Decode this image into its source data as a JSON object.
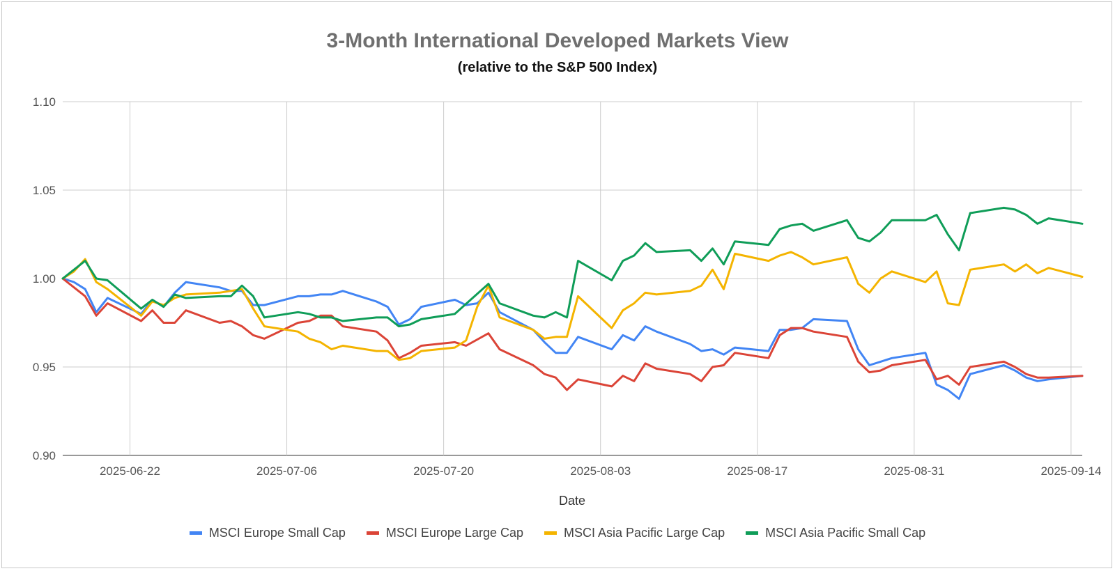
{
  "chart_data": {
    "type": "line",
    "title": "3-Month International Developed Markets View",
    "subtitle": "(relative to the S&P 500 Index)",
    "xlabel": "Date",
    "ylabel": "",
    "ylim": [
      0.9,
      1.1
    ],
    "yticks": [
      "0.90",
      "0.95",
      "1.00",
      "1.05",
      "1.10"
    ],
    "xticks": [
      "2025-06-22",
      "2025-07-06",
      "2025-07-20",
      "2025-08-03",
      "2025-08-17",
      "2025-08-31",
      "2025-09-14"
    ],
    "xrange": [
      "2025-06-16",
      "2025-09-15"
    ],
    "grid": true,
    "legend_position": "bottom",
    "series": [
      {
        "name": "MSCI Europe Small Cap",
        "color": "#4285f4",
        "points": [
          [
            "2025-06-16",
            1.0
          ],
          [
            "2025-06-17",
            0.998
          ],
          [
            "2025-06-18",
            0.994
          ],
          [
            "2025-06-19",
            0.981
          ],
          [
            "2025-06-20",
            0.989
          ],
          [
            "2025-06-23",
            0.98
          ],
          [
            "2025-06-24",
            0.988
          ],
          [
            "2025-06-25",
            0.984
          ],
          [
            "2025-06-26",
            0.992
          ],
          [
            "2025-06-27",
            0.998
          ],
          [
            "2025-06-30",
            0.995
          ],
          [
            "2025-07-01",
            0.993
          ],
          [
            "2025-07-02",
            0.993
          ],
          [
            "2025-07-03",
            0.985
          ],
          [
            "2025-07-04",
            0.985
          ],
          [
            "2025-07-07",
            0.99
          ],
          [
            "2025-07-08",
            0.99
          ],
          [
            "2025-07-09",
            0.991
          ],
          [
            "2025-07-10",
            0.991
          ],
          [
            "2025-07-11",
            0.993
          ],
          [
            "2025-07-14",
            0.987
          ],
          [
            "2025-07-15",
            0.984
          ],
          [
            "2025-07-16",
            0.974
          ],
          [
            "2025-07-17",
            0.977
          ],
          [
            "2025-07-18",
            0.984
          ],
          [
            "2025-07-21",
            0.988
          ],
          [
            "2025-07-22",
            0.985
          ],
          [
            "2025-07-23",
            0.986
          ],
          [
            "2025-07-24",
            0.992
          ],
          [
            "2025-07-25",
            0.981
          ],
          [
            "2025-07-28",
            0.971
          ],
          [
            "2025-07-29",
            0.964
          ],
          [
            "2025-07-30",
            0.958
          ],
          [
            "2025-07-31",
            0.958
          ],
          [
            "2025-08-01",
            0.967
          ],
          [
            "2025-08-04",
            0.96
          ],
          [
            "2025-08-05",
            0.968
          ],
          [
            "2025-08-06",
            0.965
          ],
          [
            "2025-08-07",
            0.973
          ],
          [
            "2025-08-08",
            0.97
          ],
          [
            "2025-08-11",
            0.963
          ],
          [
            "2025-08-12",
            0.959
          ],
          [
            "2025-08-13",
            0.96
          ],
          [
            "2025-08-14",
            0.957
          ],
          [
            "2025-08-15",
            0.961
          ],
          [
            "2025-08-18",
            0.959
          ],
          [
            "2025-08-19",
            0.971
          ],
          [
            "2025-08-20",
            0.971
          ],
          [
            "2025-08-21",
            0.972
          ],
          [
            "2025-08-22",
            0.977
          ],
          [
            "2025-08-25",
            0.976
          ],
          [
            "2025-08-26",
            0.96
          ],
          [
            "2025-08-27",
            0.951
          ],
          [
            "2025-08-28",
            0.953
          ],
          [
            "2025-08-29",
            0.955
          ],
          [
            "2025-09-01",
            0.958
          ],
          [
            "2025-09-02",
            0.94
          ],
          [
            "2025-09-03",
            0.937
          ],
          [
            "2025-09-04",
            0.932
          ],
          [
            "2025-09-05",
            0.946
          ],
          [
            "2025-09-08",
            0.951
          ],
          [
            "2025-09-09",
            0.948
          ],
          [
            "2025-09-10",
            0.944
          ],
          [
            "2025-09-11",
            0.942
          ],
          [
            "2025-09-12",
            0.943
          ],
          [
            "2025-09-15",
            0.945
          ]
        ]
      },
      {
        "name": "MSCI Europe Large Cap",
        "color": "#db4437",
        "points": [
          [
            "2025-06-16",
            1.0
          ],
          [
            "2025-06-17",
            0.995
          ],
          [
            "2025-06-18",
            0.99
          ],
          [
            "2025-06-19",
            0.979
          ],
          [
            "2025-06-20",
            0.986
          ],
          [
            "2025-06-23",
            0.976
          ],
          [
            "2025-06-24",
            0.982
          ],
          [
            "2025-06-25",
            0.975
          ],
          [
            "2025-06-26",
            0.975
          ],
          [
            "2025-06-27",
            0.982
          ],
          [
            "2025-06-30",
            0.975
          ],
          [
            "2025-07-01",
            0.976
          ],
          [
            "2025-07-02",
            0.973
          ],
          [
            "2025-07-03",
            0.968
          ],
          [
            "2025-07-04",
            0.966
          ],
          [
            "2025-07-07",
            0.975
          ],
          [
            "2025-07-08",
            0.976
          ],
          [
            "2025-07-09",
            0.979
          ],
          [
            "2025-07-10",
            0.979
          ],
          [
            "2025-07-11",
            0.973
          ],
          [
            "2025-07-14",
            0.97
          ],
          [
            "2025-07-15",
            0.965
          ],
          [
            "2025-07-16",
            0.955
          ],
          [
            "2025-07-17",
            0.958
          ],
          [
            "2025-07-18",
            0.962
          ],
          [
            "2025-07-21",
            0.964
          ],
          [
            "2025-07-22",
            0.962
          ],
          [
            "2025-07-24",
            0.969
          ],
          [
            "2025-07-25",
            0.96
          ],
          [
            "2025-07-28",
            0.951
          ],
          [
            "2025-07-29",
            0.946
          ],
          [
            "2025-07-30",
            0.944
          ],
          [
            "2025-07-31",
            0.937
          ],
          [
            "2025-08-01",
            0.943
          ],
          [
            "2025-08-04",
            0.939
          ],
          [
            "2025-08-05",
            0.945
          ],
          [
            "2025-08-06",
            0.942
          ],
          [
            "2025-08-07",
            0.952
          ],
          [
            "2025-08-08",
            0.949
          ],
          [
            "2025-08-11",
            0.946
          ],
          [
            "2025-08-12",
            0.942
          ],
          [
            "2025-08-13",
            0.95
          ],
          [
            "2025-08-14",
            0.951
          ],
          [
            "2025-08-15",
            0.958
          ],
          [
            "2025-08-18",
            0.955
          ],
          [
            "2025-08-19",
            0.968
          ],
          [
            "2025-08-20",
            0.972
          ],
          [
            "2025-08-21",
            0.972
          ],
          [
            "2025-08-22",
            0.97
          ],
          [
            "2025-08-25",
            0.967
          ],
          [
            "2025-08-26",
            0.953
          ],
          [
            "2025-08-27",
            0.947
          ],
          [
            "2025-08-28",
            0.948
          ],
          [
            "2025-08-29",
            0.951
          ],
          [
            "2025-09-01",
            0.954
          ],
          [
            "2025-09-02",
            0.943
          ],
          [
            "2025-09-03",
            0.945
          ],
          [
            "2025-09-04",
            0.94
          ],
          [
            "2025-09-05",
            0.95
          ],
          [
            "2025-09-08",
            0.953
          ],
          [
            "2025-09-09",
            0.95
          ],
          [
            "2025-09-10",
            0.946
          ],
          [
            "2025-09-11",
            0.944
          ],
          [
            "2025-09-12",
            0.944
          ],
          [
            "2025-09-15",
            0.945
          ]
        ]
      },
      {
        "name": "MSCI Asia Pacific Large Cap",
        "color": "#f4b400",
        "points": [
          [
            "2025-06-16",
            1.0
          ],
          [
            "2025-06-17",
            1.004
          ],
          [
            "2025-06-18",
            1.011
          ],
          [
            "2025-06-19",
            0.998
          ],
          [
            "2025-06-20",
            0.994
          ],
          [
            "2025-06-23",
            0.979
          ],
          [
            "2025-06-24",
            0.987
          ],
          [
            "2025-06-25",
            0.985
          ],
          [
            "2025-06-26",
            0.989
          ],
          [
            "2025-06-27",
            0.991
          ],
          [
            "2025-06-30",
            0.992
          ],
          [
            "2025-07-01",
            0.993
          ],
          [
            "2025-07-02",
            0.994
          ],
          [
            "2025-07-03",
            0.983
          ],
          [
            "2025-07-04",
            0.973
          ],
          [
            "2025-07-07",
            0.97
          ],
          [
            "2025-07-08",
            0.966
          ],
          [
            "2025-07-09",
            0.964
          ],
          [
            "2025-07-10",
            0.96
          ],
          [
            "2025-07-11",
            0.962
          ],
          [
            "2025-07-14",
            0.959
          ],
          [
            "2025-07-15",
            0.959
          ],
          [
            "2025-07-16",
            0.954
          ],
          [
            "2025-07-17",
            0.955
          ],
          [
            "2025-07-18",
            0.959
          ],
          [
            "2025-07-21",
            0.961
          ],
          [
            "2025-07-22",
            0.965
          ],
          [
            "2025-07-23",
            0.984
          ],
          [
            "2025-07-24",
            0.996
          ],
          [
            "2025-07-25",
            0.978
          ],
          [
            "2025-07-28",
            0.971
          ],
          [
            "2025-07-29",
            0.966
          ],
          [
            "2025-07-30",
            0.967
          ],
          [
            "2025-07-31",
            0.967
          ],
          [
            "2025-08-01",
            0.99
          ],
          [
            "2025-08-04",
            0.972
          ],
          [
            "2025-08-05",
            0.982
          ],
          [
            "2025-08-06",
            0.986
          ],
          [
            "2025-08-07",
            0.992
          ],
          [
            "2025-08-08",
            0.991
          ],
          [
            "2025-08-11",
            0.993
          ],
          [
            "2025-08-12",
            0.996
          ],
          [
            "2025-08-13",
            1.005
          ],
          [
            "2025-08-14",
            0.994
          ],
          [
            "2025-08-15",
            1.014
          ],
          [
            "2025-08-18",
            1.01
          ],
          [
            "2025-08-19",
            1.013
          ],
          [
            "2025-08-20",
            1.015
          ],
          [
            "2025-08-21",
            1.012
          ],
          [
            "2025-08-22",
            1.008
          ],
          [
            "2025-08-25",
            1.012
          ],
          [
            "2025-08-26",
            0.997
          ],
          [
            "2025-08-27",
            0.992
          ],
          [
            "2025-08-28",
            1.0
          ],
          [
            "2025-08-29",
            1.004
          ],
          [
            "2025-09-01",
            0.998
          ],
          [
            "2025-09-02",
            1.004
          ],
          [
            "2025-09-03",
            0.986
          ],
          [
            "2025-09-04",
            0.985
          ],
          [
            "2025-09-05",
            1.005
          ],
          [
            "2025-09-08",
            1.008
          ],
          [
            "2025-09-09",
            1.004
          ],
          [
            "2025-09-10",
            1.008
          ],
          [
            "2025-09-11",
            1.003
          ],
          [
            "2025-09-12",
            1.006
          ],
          [
            "2025-09-15",
            1.001
          ]
        ]
      },
      {
        "name": "MSCI Asia Pacific Small Cap",
        "color": "#0f9d58",
        "points": [
          [
            "2025-06-16",
            1.0
          ],
          [
            "2025-06-17",
            1.005
          ],
          [
            "2025-06-18",
            1.01
          ],
          [
            "2025-06-19",
            1.0
          ],
          [
            "2025-06-20",
            0.999
          ],
          [
            "2025-06-23",
            0.983
          ],
          [
            "2025-06-24",
            0.988
          ],
          [
            "2025-06-25",
            0.984
          ],
          [
            "2025-06-26",
            0.991
          ],
          [
            "2025-06-27",
            0.989
          ],
          [
            "2025-06-30",
            0.99
          ],
          [
            "2025-07-01",
            0.99
          ],
          [
            "2025-07-02",
            0.996
          ],
          [
            "2025-07-03",
            0.99
          ],
          [
            "2025-07-04",
            0.978
          ],
          [
            "2025-07-07",
            0.981
          ],
          [
            "2025-07-08",
            0.98
          ],
          [
            "2025-07-09",
            0.978
          ],
          [
            "2025-07-10",
            0.978
          ],
          [
            "2025-07-11",
            0.976
          ],
          [
            "2025-07-14",
            0.978
          ],
          [
            "2025-07-15",
            0.978
          ],
          [
            "2025-07-16",
            0.973
          ],
          [
            "2025-07-17",
            0.974
          ],
          [
            "2025-07-18",
            0.977
          ],
          [
            "2025-07-21",
            0.98
          ],
          [
            "2025-07-24",
            0.997
          ],
          [
            "2025-07-25",
            0.986
          ],
          [
            "2025-07-28",
            0.979
          ],
          [
            "2025-07-29",
            0.978
          ],
          [
            "2025-07-30",
            0.981
          ],
          [
            "2025-07-31",
            0.978
          ],
          [
            "2025-08-01",
            1.01
          ],
          [
            "2025-08-04",
            0.999
          ],
          [
            "2025-08-05",
            1.01
          ],
          [
            "2025-08-06",
            1.013
          ],
          [
            "2025-08-07",
            1.02
          ],
          [
            "2025-08-08",
            1.015
          ],
          [
            "2025-08-11",
            1.016
          ],
          [
            "2025-08-12",
            1.01
          ],
          [
            "2025-08-13",
            1.017
          ],
          [
            "2025-08-14",
            1.008
          ],
          [
            "2025-08-15",
            1.021
          ],
          [
            "2025-08-18",
            1.019
          ],
          [
            "2025-08-19",
            1.028
          ],
          [
            "2025-08-20",
            1.03
          ],
          [
            "2025-08-21",
            1.031
          ],
          [
            "2025-08-22",
            1.027
          ],
          [
            "2025-08-25",
            1.033
          ],
          [
            "2025-08-26",
            1.023
          ],
          [
            "2025-08-27",
            1.021
          ],
          [
            "2025-08-28",
            1.026
          ],
          [
            "2025-08-29",
            1.033
          ],
          [
            "2025-09-01",
            1.033
          ],
          [
            "2025-09-02",
            1.036
          ],
          [
            "2025-09-03",
            1.025
          ],
          [
            "2025-09-04",
            1.016
          ],
          [
            "2025-09-05",
            1.037
          ],
          [
            "2025-09-08",
            1.04
          ],
          [
            "2025-09-09",
            1.039
          ],
          [
            "2025-09-10",
            1.036
          ],
          [
            "2025-09-11",
            1.031
          ],
          [
            "2025-09-12",
            1.034
          ],
          [
            "2025-09-15",
            1.031
          ]
        ]
      }
    ]
  }
}
